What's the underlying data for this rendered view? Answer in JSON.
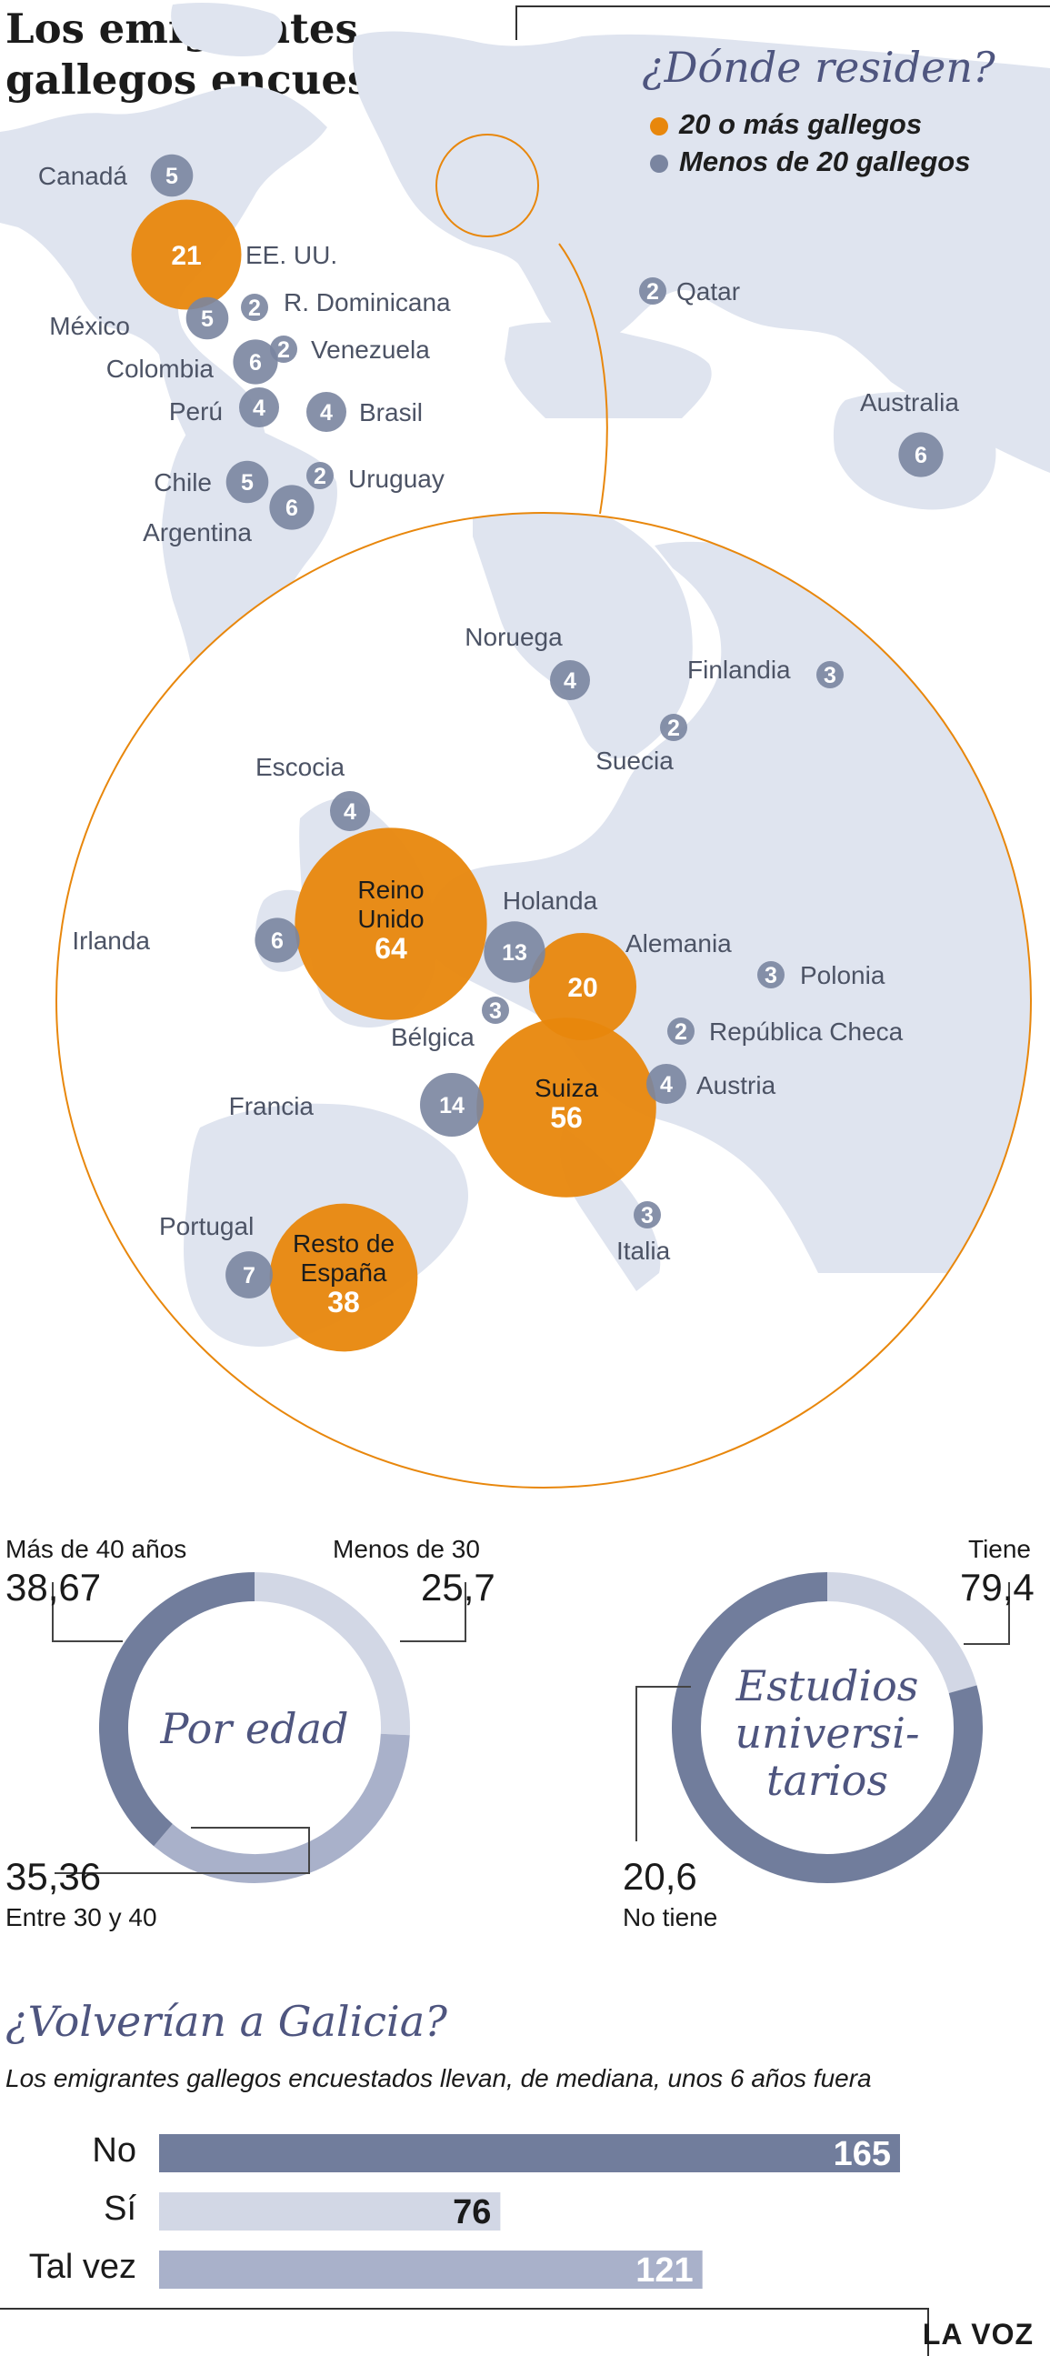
{
  "title": "Los emigrantes gallegos encuestados",
  "map_section": {
    "title": "¿Dónde residen?",
    "legend": [
      {
        "label": "20 o más gallegos",
        "color": "#e8870c"
      },
      {
        "label": "Menos de 20 gallegos",
        "color": "#7a85a0"
      }
    ]
  },
  "chart_data": [
    {
      "type": "bubble-map",
      "title": "¿Dónde residen?",
      "world": [
        {
          "country": "Canadá",
          "value": 5
        },
        {
          "country": "EE. UU.",
          "value": 21
        },
        {
          "country": "México",
          "value": 5
        },
        {
          "country": "R. Dominicana",
          "value": 2
        },
        {
          "country": "Colombia",
          "value": 6
        },
        {
          "country": "Venezuela",
          "value": 2
        },
        {
          "country": "Perú",
          "value": 4
        },
        {
          "country": "Brasil",
          "value": 4
        },
        {
          "country": "Chile",
          "value": 5
        },
        {
          "country": "Uruguay",
          "value": 2
        },
        {
          "country": "Argentina",
          "value": 6
        },
        {
          "country": "Qatar",
          "value": 2
        },
        {
          "country": "Australia",
          "value": 6
        }
      ],
      "europe": [
        {
          "country": "Noruega",
          "value": 4
        },
        {
          "country": "Finlandia",
          "value": 3
        },
        {
          "country": "Suecia",
          "value": 2
        },
        {
          "country": "Escocia",
          "value": 4
        },
        {
          "country": "Reino Unido",
          "value": 64
        },
        {
          "country": "Irlanda",
          "value": 6
        },
        {
          "country": "Holanda",
          "value": 13
        },
        {
          "country": "Alemania",
          "value": 20
        },
        {
          "country": "Polonia",
          "value": 3
        },
        {
          "country": "Bélgica",
          "value": 3
        },
        {
          "country": "República Checa",
          "value": 2
        },
        {
          "country": "Suiza",
          "value": 56
        },
        {
          "country": "Austria",
          "value": 4
        },
        {
          "country": "Francia",
          "value": 14
        },
        {
          "country": "Italia",
          "value": 3
        },
        {
          "country": "Portugal",
          "value": 7
        },
        {
          "country": "Resto de España",
          "value": 38
        }
      ]
    },
    {
      "type": "pie",
      "title": "Por edad",
      "slices": [
        {
          "label": "Menos de 30",
          "value": 25.7,
          "display": "25,7",
          "color": "#d2d7e5"
        },
        {
          "label": "Entre 30 y 40",
          "value": 35.36,
          "display": "35,36",
          "color": "#a9b1ca"
        },
        {
          "label": "Más de 40 años",
          "value": 38.67,
          "display": "38,67",
          "color": "#717d9c"
        }
      ]
    },
    {
      "type": "pie",
      "title": "Estudios universitarios",
      "slices": [
        {
          "label": "Tiene",
          "value": 79.4,
          "display": "79,4",
          "color": "#717d9c"
        },
        {
          "label": "No tiene",
          "value": 20.6,
          "display": "20,6",
          "color": "#d2d7e5"
        }
      ]
    },
    {
      "type": "bar",
      "title": "¿Volverían a Galicia?",
      "subtitle": "Los emigrantes gallegos encuestados llevan, de mediana, unos 6 años fuera",
      "categories": [
        "No",
        "Sí",
        "Tal vez"
      ],
      "values": [
        165,
        76,
        121
      ],
      "colors": [
        "#717d9c",
        "#d2d7e5",
        "#a9b1ca"
      ],
      "value_colors": [
        "#ffffff",
        "#1a1a1a",
        "#ffffff"
      ]
    }
  ],
  "age_donut": {
    "center_line1": "Por",
    "center_line2": "edad"
  },
  "edu_donut": {
    "center_lines": [
      "Estudios",
      "universi-",
      "tarios"
    ]
  },
  "footer": "LA VOZ",
  "colors": {
    "orange": "#e8870c",
    "slate": "#7a85a0",
    "land": "#dfe4ef",
    "title_blue": "#4e557f"
  }
}
